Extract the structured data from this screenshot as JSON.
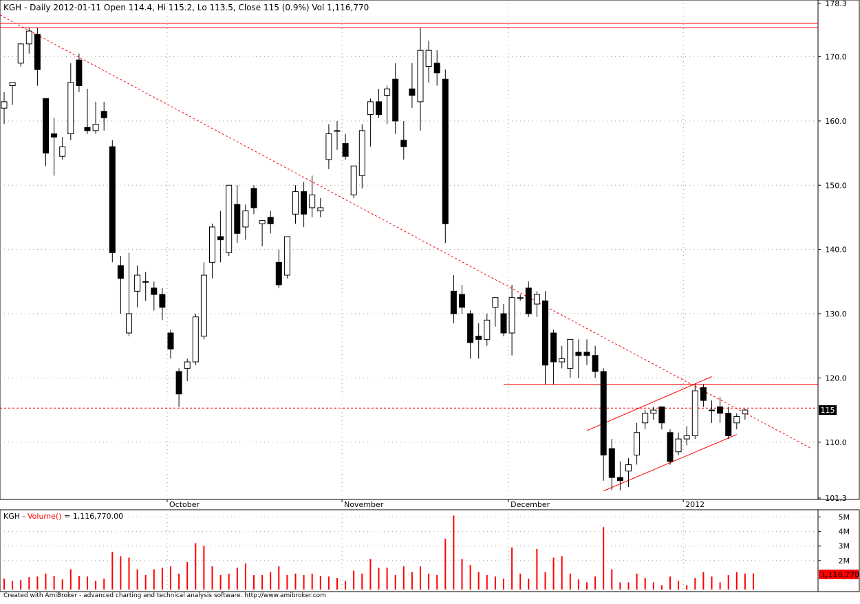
{
  "chart_data": [
    {
      "type": "candlestick",
      "title": "KGH - Daily 2012-01-11 Open 114.4, Hi 115.2, Lo 113.5, Close 115 (0.9%) Vol 1,116,770",
      "ylim": [
        101.3,
        178.3
      ],
      "y_tick_labels": [
        "178.3",
        "170.0",
        "160.0",
        "150.0",
        "140.0",
        "130.0",
        "120.0",
        "110.0",
        "101.3"
      ],
      "y_ticks": [
        178.3,
        170,
        160,
        150,
        140,
        130,
        120,
        110,
        101.3
      ],
      "x_labels": [
        {
          "label": "October",
          "index": 20
        },
        {
          "label": "November",
          "index": 41
        },
        {
          "label": "December",
          "index": 61
        },
        {
          "label": "2012",
          "index": 82
        }
      ],
      "last_price_label": "115",
      "last_price": 115,
      "grid": true,
      "candles": [
        {
          "o": 162,
          "h": 164.5,
          "l": 159.5,
          "c": 163
        },
        {
          "o": 165.5,
          "h": 166,
          "l": 162.5,
          "c": 166
        },
        {
          "o": 169,
          "h": 172,
          "l": 168.5,
          "c": 172
        },
        {
          "o": 172,
          "h": 174.5,
          "l": 170.5,
          "c": 174
        },
        {
          "o": 173.5,
          "h": 174.5,
          "l": 165.5,
          "c": 168
        },
        {
          "o": 163.5,
          "h": 163.5,
          "l": 153,
          "c": 155
        },
        {
          "o": 158,
          "h": 160.5,
          "l": 151.5,
          "c": 157.5
        },
        {
          "o": 154.5,
          "h": 157.5,
          "l": 154,
          "c": 156
        },
        {
          "o": 158,
          "h": 169,
          "l": 157,
          "c": 166
        },
        {
          "o": 169.5,
          "h": 170.5,
          "l": 164.5,
          "c": 165.5
        },
        {
          "o": 159,
          "h": 165,
          "l": 158,
          "c": 158.5
        },
        {
          "o": 158.5,
          "h": 163,
          "l": 158,
          "c": 159.5
        },
        {
          "o": 161.5,
          "h": 163,
          "l": 158.5,
          "c": 160.5
        },
        {
          "o": 156,
          "h": 157,
          "l": 138,
          "c": 139.5
        },
        {
          "o": 137.5,
          "h": 139,
          "l": 130,
          "c": 135.5
        },
        {
          "o": 127,
          "h": 139.5,
          "l": 126.5,
          "c": 130
        },
        {
          "o": 133.5,
          "h": 137.5,
          "l": 131,
          "c": 136
        },
        {
          "o": 135,
          "h": 136.5,
          "l": 132,
          "c": 135
        },
        {
          "o": 134,
          "h": 135,
          "l": 130.5,
          "c": 133
        },
        {
          "o": 133,
          "h": 134,
          "l": 129,
          "c": 131
        },
        {
          "o": 127,
          "h": 127.5,
          "l": 123,
          "c": 124.5
        },
        {
          "o": 121,
          "h": 121.5,
          "l": 115.5,
          "c": 117.5
        },
        {
          "o": 121.5,
          "h": 123,
          "l": 119.5,
          "c": 122.5
        },
        {
          "o": 122.5,
          "h": 130,
          "l": 122,
          "c": 129.5
        },
        {
          "o": 126.5,
          "h": 138,
          "l": 126,
          "c": 136
        },
        {
          "o": 138,
          "h": 144,
          "l": 135.5,
          "c": 143.5
        },
        {
          "o": 142,
          "h": 146,
          "l": 138,
          "c": 141.5
        },
        {
          "o": 139.5,
          "h": 150,
          "l": 139,
          "c": 150
        },
        {
          "o": 147,
          "h": 150,
          "l": 141,
          "c": 142.5
        },
        {
          "o": 143.5,
          "h": 147,
          "l": 141.5,
          "c": 146
        },
        {
          "o": 149.5,
          "h": 150,
          "l": 145.5,
          "c": 146.5
        },
        {
          "o": 144,
          "h": 144.5,
          "l": 140.5,
          "c": 144.5
        },
        {
          "o": 145,
          "h": 146,
          "l": 142.5,
          "c": 144
        },
        {
          "o": 138,
          "h": 140,
          "l": 134,
          "c": 134.5
        },
        {
          "o": 136,
          "h": 142,
          "l": 135.5,
          "c": 142
        },
        {
          "o": 145.5,
          "h": 150,
          "l": 144,
          "c": 149
        },
        {
          "o": 149,
          "h": 150.5,
          "l": 143.5,
          "c": 145.5
        },
        {
          "o": 146.5,
          "h": 151.5,
          "l": 145,
          "c": 148.5
        },
        {
          "o": 146,
          "h": 148,
          "l": 145,
          "c": 146.5
        },
        {
          "o": 154,
          "h": 159.5,
          "l": 152.5,
          "c": 158
        },
        {
          "o": 158.5,
          "h": 160,
          "l": 155.5,
          "c": 158.5
        },
        {
          "o": 156.5,
          "h": 158,
          "l": 154,
          "c": 154.5
        },
        {
          "o": 148.5,
          "h": 153,
          "l": 148,
          "c": 153
        },
        {
          "o": 151.5,
          "h": 159.5,
          "l": 149.5,
          "c": 158.5
        },
        {
          "o": 161,
          "h": 163.5,
          "l": 156,
          "c": 163
        },
        {
          "o": 163,
          "h": 165,
          "l": 160.5,
          "c": 161
        },
        {
          "o": 164,
          "h": 165.5,
          "l": 159.5,
          "c": 165
        },
        {
          "o": 166.5,
          "h": 169,
          "l": 158,
          "c": 160
        },
        {
          "o": 157,
          "h": 160,
          "l": 154,
          "c": 156
        },
        {
          "o": 165,
          "h": 169,
          "l": 162,
          "c": 164
        },
        {
          "o": 163,
          "h": 174.5,
          "l": 158.5,
          "c": 171
        },
        {
          "o": 168.5,
          "h": 172.5,
          "l": 166,
          "c": 171
        },
        {
          "o": 169,
          "h": 171,
          "l": 165.5,
          "c": 167.5
        },
        {
          "o": 166.5,
          "h": 168,
          "l": 141,
          "c": 144
        },
        {
          "o": 133.5,
          "h": 136,
          "l": 128.5,
          "c": 130
        },
        {
          "o": 133,
          "h": 134.5,
          "l": 130,
          "c": 131
        },
        {
          "o": 130,
          "h": 130.5,
          "l": 123,
          "c": 125.5
        },
        {
          "o": 126.5,
          "h": 128.5,
          "l": 123,
          "c": 126
        },
        {
          "o": 126,
          "h": 130,
          "l": 125,
          "c": 129
        },
        {
          "o": 131,
          "h": 132.5,
          "l": 128,
          "c": 132.5
        },
        {
          "o": 130,
          "h": 131.5,
          "l": 126.5,
          "c": 127
        },
        {
          "o": 127,
          "h": 134.5,
          "l": 123.5,
          "c": 132.5
        },
        {
          "o": 132.5,
          "h": 133,
          "l": 132,
          "c": 132.5
        },
        {
          "o": 134,
          "h": 135,
          "l": 129.5,
          "c": 130
        },
        {
          "o": 131.5,
          "h": 133.5,
          "l": 129.5,
          "c": 133
        },
        {
          "o": 132,
          "h": 133.5,
          "l": 119,
          "c": 122
        },
        {
          "o": 127,
          "h": 127.5,
          "l": 119,
          "c": 122.5
        },
        {
          "o": 122.5,
          "h": 125,
          "l": 121.5,
          "c": 123
        },
        {
          "o": 121.5,
          "h": 126,
          "l": 120,
          "c": 126
        },
        {
          "o": 124,
          "h": 126,
          "l": 120,
          "c": 123.5
        },
        {
          "o": 124,
          "h": 126,
          "l": 122,
          "c": 123.5
        },
        {
          "o": 123.5,
          "h": 125,
          "l": 120,
          "c": 121
        },
        {
          "o": 121,
          "h": 121.5,
          "l": 104,
          "c": 108
        },
        {
          "o": 109,
          "h": 110.5,
          "l": 102.5,
          "c": 104.5
        },
        {
          "o": 104.5,
          "h": 107,
          "l": 102.5,
          "c": 104
        },
        {
          "o": 105.5,
          "h": 107.5,
          "l": 103,
          "c": 106.5
        },
        {
          "o": 108,
          "h": 113,
          "l": 106.5,
          "c": 111.5
        },
        {
          "o": 113,
          "h": 115,
          "l": 112,
          "c": 114.5
        },
        {
          "o": 114.5,
          "h": 115.5,
          "l": 113.5,
          "c": 115
        },
        {
          "o": 115.5,
          "h": 115.5,
          "l": 112,
          "c": 113
        },
        {
          "o": 111.5,
          "h": 112,
          "l": 106.5,
          "c": 107
        },
        {
          "o": 108.5,
          "h": 111.5,
          "l": 108,
          "c": 110.5
        },
        {
          "o": 110.5,
          "h": 112.5,
          "l": 109.5,
          "c": 111
        },
        {
          "o": 111,
          "h": 119,
          "l": 110.5,
          "c": 118
        },
        {
          "o": 118.5,
          "h": 119,
          "l": 115.5,
          "c": 116.5
        },
        {
          "o": 115,
          "h": 116.5,
          "l": 113,
          "c": 115
        },
        {
          "o": 115.5,
          "h": 117,
          "l": 113,
          "c": 114.5
        },
        {
          "o": 114.5,
          "h": 115.5,
          "l": 110.5,
          "c": 111
        },
        {
          "o": 113,
          "h": 114.5,
          "l": 112,
          "c": 114
        },
        {
          "o": 114.4,
          "h": 115.2,
          "l": 113.5,
          "c": 115
        }
      ],
      "lines": [
        {
          "kind": "horizontal",
          "style": "solid",
          "color": "#ff0000",
          "y": 175.2,
          "from": 0,
          "to": "end"
        },
        {
          "kind": "horizontal",
          "style": "solid",
          "color": "#ff0000",
          "y": 174.5,
          "from": 0,
          "to": "end"
        },
        {
          "kind": "horizontal",
          "style": "dashed",
          "color": "#ff0000",
          "y": 115.3,
          "from": 0,
          "to": "end"
        },
        {
          "kind": "horizontal",
          "style": "solid",
          "color": "#ff0000",
          "y": 119,
          "from": 60,
          "to": "end"
        },
        {
          "kind": "trend",
          "style": "dashed",
          "color": "#ff0000",
          "x1": -0.5,
          "y1": 176.5,
          "x2": 97,
          "y2": 109
        },
        {
          "kind": "trend",
          "style": "solid",
          "color": "#ff0000",
          "x1": 70,
          "y1": 111.8,
          "x2": 85,
          "y2": 120.2
        },
        {
          "kind": "trend",
          "style": "solid",
          "color": "#ff0000",
          "x1": 72,
          "y1": 102.4,
          "x2": 88,
          "y2": 111.2
        }
      ]
    },
    {
      "type": "bar",
      "title_prefix": "KGH - ",
      "title_series": "Volume()",
      "title_value": " = 1,116,770.00",
      "ylim": [
        0,
        5500000
      ],
      "y_tick_labels": [
        "5M",
        "4M",
        "3M",
        "2M"
      ],
      "y_ticks": [
        5000000,
        4000000,
        3000000,
        2000000
      ],
      "last_value_label": "1,116,770",
      "series": [
        {
          "color": "#ff0000",
          "values": [
            750000,
            600000,
            650000,
            850000,
            900000,
            1100000,
            950000,
            700000,
            1400000,
            950000,
            900000,
            600000,
            750000,
            2600000,
            2300000,
            2200000,
            1400000,
            1000000,
            1400000,
            1500000,
            1600000,
            1100000,
            1900000,
            3200000,
            3000000,
            1600000,
            1000000,
            1100000,
            1500000,
            1800000,
            1000000,
            1000000,
            1200000,
            1600000,
            1000000,
            1100000,
            1000000,
            1100000,
            950000,
            900000,
            800000,
            600000,
            1300000,
            1100000,
            2100000,
            1500000,
            1500000,
            1000000,
            1600000,
            1200000,
            1600000,
            1100000,
            1000000,
            3500000,
            5100000,
            2100000,
            1700000,
            1200000,
            1000000,
            900000,
            750000,
            2900000,
            1100000,
            750000,
            2800000,
            1200000,
            2200000,
            2300000,
            1100000,
            700000,
            500000,
            900000,
            4300000,
            1400000,
            500000,
            500000,
            1100000,
            800000,
            500000,
            300000,
            900000,
            600000,
            300000,
            800000,
            1200000,
            900000,
            500000,
            1000000,
            1200000,
            1100000,
            1116770
          ]
        }
      ]
    }
  ],
  "footer": "Created with AmiBroker - advanced charting and technical analysis software. http://www.amibroker.com"
}
